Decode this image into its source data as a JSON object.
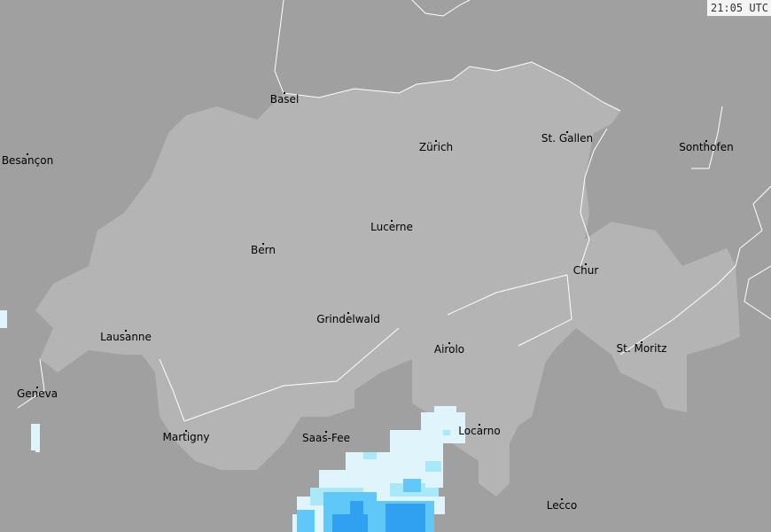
{
  "timestamp": "21:05 UTC",
  "colors": {
    "background": "#a0a0a0",
    "switzerland": "#b4b4b4",
    "border": "#ffffff",
    "radar_light": "#e0f4fc",
    "radar_mid": "#a8e8f8",
    "radar_strong": "#60c8f8",
    "radar_heavy": "#30a0f0"
  },
  "cities": [
    {
      "name": "Basel"
    },
    {
      "name": "Zürich"
    },
    {
      "name": "St. Gallen"
    },
    {
      "name": "Sonthofen"
    },
    {
      "name": "Besançon"
    },
    {
      "name": "Lucerne"
    },
    {
      "name": "Bern"
    },
    {
      "name": "Chur"
    },
    {
      "name": "Grindelwald"
    },
    {
      "name": "Lausanne"
    },
    {
      "name": "Airolo"
    },
    {
      "name": "St. Moritz"
    },
    {
      "name": "Geneva"
    },
    {
      "name": "Locarno"
    },
    {
      "name": "Martigny"
    },
    {
      "name": "Saas-Fee"
    },
    {
      "name": "Lecco"
    }
  ]
}
